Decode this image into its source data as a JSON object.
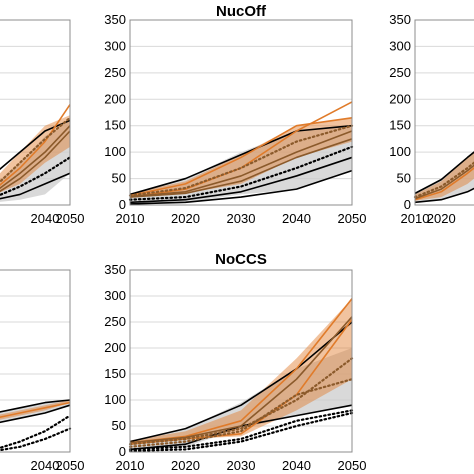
{
  "chart_data": [
    {
      "type": "line",
      "title": "",
      "xlim": [
        2010,
        2050
      ],
      "ylim": [
        0,
        350
      ],
      "x_ticks": [
        "2040",
        "2050"
      ],
      "y_ticks": [],
      "grid": "horizontal",
      "bands": [
        {
          "color": "#cccccc",
          "x": [
            2010,
            2020,
            2030,
            2040,
            2050
          ],
          "low": [
            5,
            5,
            10,
            20,
            60
          ],
          "high": [
            20,
            40,
            80,
            130,
            160
          ]
        },
        {
          "color": "#e07b2a",
          "x": [
            2010,
            2020,
            2030,
            2040,
            2050
          ],
          "low": [
            10,
            20,
            40,
            80,
            110
          ],
          "high": [
            20,
            50,
            100,
            150,
            170
          ]
        }
      ],
      "series": [
        {
          "color": "#000000",
          "style": "solid",
          "x": [
            2010,
            2020,
            2030,
            2040,
            2050
          ],
          "values": [
            20,
            60,
            100,
            140,
            160
          ]
        },
        {
          "color": "#000000",
          "style": "solid",
          "x": [
            2010,
            2020,
            2030,
            2040,
            2050
          ],
          "values": [
            5,
            10,
            20,
            40,
            60
          ]
        },
        {
          "color": "#e07b2a",
          "style": "solid",
          "x": [
            2010,
            2020,
            2030,
            2040,
            2050
          ],
          "values": [
            15,
            30,
            70,
            120,
            190
          ]
        },
        {
          "color": "#8b5a2b",
          "style": "solid",
          "x": [
            2010,
            2020,
            2030,
            2040,
            2050
          ],
          "values": [
            10,
            25,
            60,
            100,
            150
          ]
        },
        {
          "color": "#8b5a2b",
          "style": "solid",
          "x": [
            2010,
            2020,
            2030,
            2040,
            2050
          ],
          "values": [
            8,
            20,
            50,
            90,
            140
          ]
        },
        {
          "color": "#8b5a2b",
          "style": "dotted",
          "x": [
            2010,
            2020,
            2030,
            2040,
            2050
          ],
          "values": [
            12,
            35,
            80,
            125,
            165
          ]
        },
        {
          "color": "#000000",
          "style": "dotted",
          "x": [
            2010,
            2020,
            2030,
            2040,
            2050
          ],
          "values": [
            8,
            15,
            35,
            60,
            90
          ]
        }
      ]
    },
    {
      "type": "line",
      "title": "NucOff",
      "xlim": [
        2010,
        2050
      ],
      "ylim": [
        0,
        350
      ],
      "x_ticks": [
        "2010",
        "2020",
        "2030",
        "2040",
        "2050"
      ],
      "y_ticks": [
        "0",
        "50",
        "100",
        "150",
        "200",
        "250",
        "300",
        "350"
      ],
      "grid": "horizontal",
      "bands": [
        {
          "color": "#cccccc",
          "x": [
            2010,
            2020,
            2030,
            2040,
            2050
          ],
          "low": [
            2,
            5,
            20,
            30,
            65
          ],
          "high": [
            20,
            50,
            100,
            140,
            150
          ]
        },
        {
          "color": "#e07b2a",
          "x": [
            2010,
            2020,
            2030,
            2040,
            2050
          ],
          "low": [
            15,
            22,
            40,
            90,
            120
          ],
          "high": [
            22,
            45,
            95,
            150,
            165
          ]
        }
      ],
      "series": [
        {
          "color": "#000000",
          "style": "solid",
          "x": [
            2010,
            2020,
            2030,
            2040,
            2050
          ],
          "values": [
            20,
            50,
            95,
            140,
            150
          ]
        },
        {
          "color": "#000000",
          "style": "solid",
          "x": [
            2010,
            2020,
            2030,
            2040,
            2050
          ],
          "values": [
            2,
            5,
            15,
            30,
            65
          ]
        },
        {
          "color": "#000000",
          "style": "solid",
          "x": [
            2010,
            2020,
            2030,
            2040,
            2050
          ],
          "values": [
            5,
            10,
            25,
            55,
            90
          ]
        },
        {
          "color": "#e07b2a",
          "style": "solid",
          "x": [
            2010,
            2020,
            2030,
            2040,
            2050
          ],
          "values": [
            15,
            30,
            70,
            140,
            195
          ]
        },
        {
          "color": "#e07b2a",
          "style": "solid",
          "x": [
            2010,
            2020,
            2030,
            2040,
            2050
          ],
          "values": [
            18,
            40,
            90,
            150,
            165
          ]
        },
        {
          "color": "#8b5a2b",
          "style": "solid",
          "x": [
            2010,
            2020,
            2030,
            2040,
            2050
          ],
          "values": [
            16,
            25,
            55,
            100,
            140
          ]
        },
        {
          "color": "#8b5a2b",
          "style": "solid",
          "x": [
            2010,
            2020,
            2030,
            2040,
            2050
          ],
          "values": [
            15,
            22,
            45,
            90,
            125
          ]
        },
        {
          "color": "#8b5a2b",
          "style": "dotted",
          "x": [
            2010,
            2020,
            2030,
            2040,
            2050
          ],
          "values": [
            18,
            32,
            70,
            120,
            150
          ]
        },
        {
          "color": "#000000",
          "style": "dotted",
          "x": [
            2010,
            2020,
            2030,
            2040,
            2050
          ],
          "values": [
            10,
            15,
            35,
            70,
            110
          ]
        }
      ]
    },
    {
      "type": "line",
      "title": "",
      "xlim": [
        2010,
        2050
      ],
      "ylim": [
        0,
        350
      ],
      "x_ticks": [
        "2010",
        "2020"
      ],
      "y_ticks": [
        "0",
        "50",
        "100",
        "150",
        "200",
        "250",
        "300",
        "350"
      ],
      "grid": "horizontal",
      "bands": [
        {
          "color": "#cccccc",
          "x": [
            2010,
            2020,
            2030,
            2040,
            2050
          ],
          "low": [
            5,
            10,
            25,
            50,
            80
          ],
          "high": [
            22,
            50,
            90,
            130,
            150
          ]
        },
        {
          "color": "#e07b2a",
          "x": [
            2010,
            2020,
            2030,
            2040,
            2050
          ],
          "low": [
            8,
            15,
            40,
            80,
            100
          ],
          "high": [
            20,
            45,
            90,
            130,
            150
          ]
        }
      ],
      "series": [
        {
          "color": "#000000",
          "style": "solid",
          "x": [
            2010,
            2020,
            2030,
            2040,
            2050
          ],
          "values": [
            22,
            48,
            90,
            130,
            150
          ]
        },
        {
          "color": "#000000",
          "style": "solid",
          "x": [
            2010,
            2020,
            2030,
            2040,
            2050
          ],
          "values": [
            5,
            10,
            25,
            50,
            80
          ]
        },
        {
          "color": "#e07b2a",
          "style": "solid",
          "x": [
            2010,
            2020,
            2030,
            2040,
            2050
          ],
          "values": [
            10,
            25,
            60,
            100,
            130
          ]
        },
        {
          "color": "#8b5a2b",
          "style": "solid",
          "x": [
            2010,
            2020,
            2030,
            2040,
            2050
          ],
          "values": [
            12,
            30,
            65,
            105,
            135
          ]
        },
        {
          "color": "#8b5a2b",
          "style": "dotted",
          "x": [
            2010,
            2020,
            2030,
            2040,
            2050
          ],
          "values": [
            15,
            35,
            70,
            110,
            140
          ]
        }
      ]
    },
    {
      "type": "line",
      "title": "",
      "xlim": [
        2010,
        2050
      ],
      "ylim": [
        0,
        350
      ],
      "x_ticks": [
        "2040",
        "2050"
      ],
      "y_ticks": [],
      "grid": "horizontal",
      "bands": [
        {
          "color": "#cccccc",
          "x": [
            2010,
            2020,
            2030,
            2040,
            2050
          ],
          "low": [
            40,
            55,
            65,
            75,
            90
          ],
          "high": [
            60,
            75,
            85,
            95,
            100
          ]
        },
        {
          "color": "#e07b2a",
          "x": [
            2010,
            2020,
            2030,
            2040,
            2050
          ],
          "low": [
            45,
            60,
            70,
            80,
            95
          ],
          "high": [
            55,
            70,
            80,
            90,
            100
          ]
        }
      ],
      "series": [
        {
          "color": "#000000",
          "style": "solid",
          "x": [
            2010,
            2020,
            2030,
            2040,
            2050
          ],
          "values": [
            60,
            75,
            85,
            95,
            100
          ]
        },
        {
          "color": "#000000",
          "style": "solid",
          "x": [
            2010,
            2020,
            2030,
            2040,
            2050
          ],
          "values": [
            40,
            55,
            65,
            75,
            90
          ]
        },
        {
          "color": "#e07b2a",
          "style": "solid",
          "x": [
            2010,
            2020,
            2030,
            2040,
            2050
          ],
          "values": [
            50,
            65,
            75,
            85,
            95
          ]
        },
        {
          "color": "#000000",
          "style": "dotted",
          "x": [
            2010,
            2020,
            2030,
            2040,
            2050
          ],
          "values": [
            0,
            5,
            20,
            40,
            70
          ]
        },
        {
          "color": "#000000",
          "style": "dotted",
          "x": [
            2010,
            2020,
            2030,
            2040,
            2050
          ],
          "values": [
            0,
            2,
            10,
            25,
            45
          ]
        }
      ]
    },
    {
      "type": "line",
      "title": "NoCCS",
      "xlim": [
        2010,
        2050
      ],
      "ylim": [
        0,
        350
      ],
      "x_ticks": [
        "2010",
        "2020",
        "2030",
        "2040",
        "2050"
      ],
      "y_ticks": [
        "0",
        "50",
        "100",
        "150",
        "200",
        "250",
        "300",
        "350"
      ],
      "grid": "horizontal",
      "bands": [
        {
          "color": "#cccccc",
          "x": [
            2010,
            2020,
            2030,
            2040,
            2050
          ],
          "low": [
            5,
            10,
            45,
            70,
            90
          ],
          "high": [
            22,
            45,
            95,
            160,
            200
          ]
        },
        {
          "color": "#e07b2a",
          "x": [
            2010,
            2020,
            2030,
            2040,
            2050
          ],
          "low": [
            18,
            25,
            30,
            80,
            140
          ],
          "high": [
            22,
            40,
            80,
            180,
            295
          ]
        }
      ],
      "series": [
        {
          "color": "#000000",
          "style": "solid",
          "x": [
            2010,
            2020,
            2030,
            2040,
            2050
          ],
          "values": [
            20,
            45,
            90,
            160,
            250
          ]
        },
        {
          "color": "#000000",
          "style": "solid",
          "x": [
            2010,
            2020,
            2030,
            2040,
            2050
          ],
          "values": [
            5,
            15,
            50,
            70,
            90
          ]
        },
        {
          "color": "#e07b2a",
          "style": "solid",
          "x": [
            2010,
            2020,
            2030,
            2040,
            2050
          ],
          "values": [
            18,
            30,
            60,
            160,
            295
          ]
        },
        {
          "color": "#e07b2a",
          "style": "solid",
          "x": [
            2010,
            2020,
            2030,
            2040,
            2050
          ],
          "values": [
            15,
            25,
            35,
            110,
            255
          ]
        },
        {
          "color": "#8b5a2b",
          "style": "solid",
          "x": [
            2010,
            2020,
            2030,
            2040,
            2050
          ],
          "values": [
            18,
            28,
            50,
            140,
            260
          ]
        },
        {
          "color": "#8b5a2b",
          "style": "dotted",
          "x": [
            2010,
            2020,
            2030,
            2040,
            2050
          ],
          "values": [
            15,
            25,
            45,
            100,
            180
          ]
        },
        {
          "color": "#8b5a2b",
          "style": "dotted",
          "x": [
            2010,
            2020,
            2030,
            2040,
            2050
          ],
          "values": [
            10,
            20,
            40,
            110,
            140
          ]
        },
        {
          "color": "#000000",
          "style": "dotted",
          "x": [
            2010,
            2020,
            2030,
            2040,
            2050
          ],
          "values": [
            5,
            10,
            25,
            60,
            80
          ]
        },
        {
          "color": "#000000",
          "style": "dotted",
          "x": [
            2010,
            2020,
            2030,
            2040,
            2050
          ],
          "values": [
            2,
            5,
            20,
            50,
            75
          ]
        }
      ]
    }
  ]
}
